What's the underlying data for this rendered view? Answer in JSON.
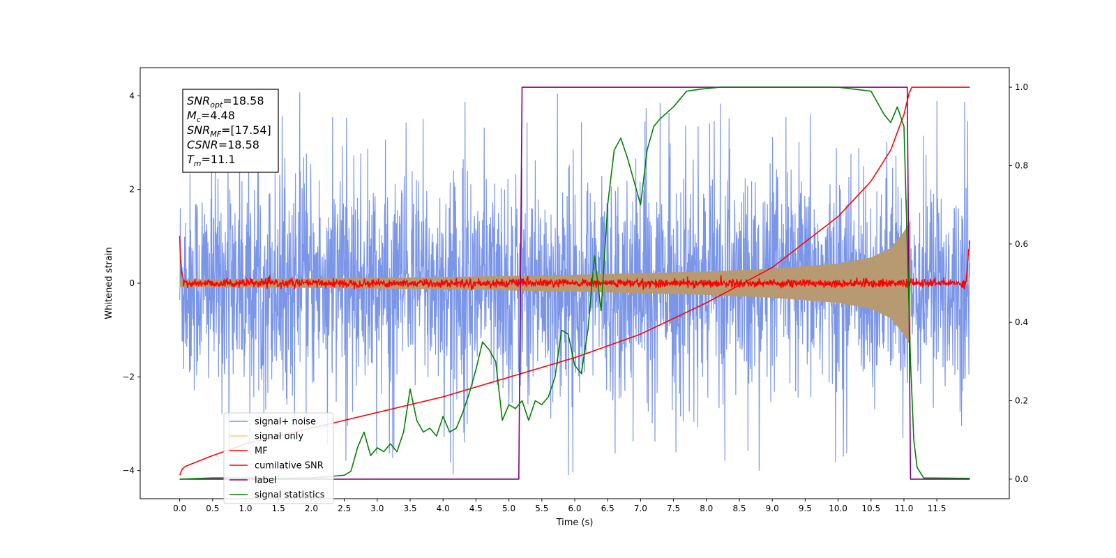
{
  "chart_data": {
    "type": "line",
    "title": "",
    "xlabel": "Time (s)",
    "ylabel": "Whitened strain",
    "xlim": [
      -0.6,
      12.6
    ],
    "ylim": [
      -4.6,
      4.6
    ],
    "y2lim": [
      -0.05,
      1.05
    ],
    "xticks": [
      "0.0",
      "0.5",
      "1.0",
      "1.5",
      "2.0",
      "2.5",
      "3.0",
      "3.5",
      "4.0",
      "4.5",
      "5.0",
      "5.5",
      "6.0",
      "6.5",
      "7.0",
      "7.5",
      "8.0",
      "8.5",
      "9.0",
      "9.5",
      "10.0",
      "10.5",
      "11.0",
      "11.5"
    ],
    "yticks": [
      "−4",
      "−2",
      "0",
      "2",
      "4"
    ],
    "y2ticks": [
      "0.0",
      "0.2",
      "0.4",
      "0.6",
      "0.8",
      "1.0"
    ],
    "grid": false,
    "legend_position": "lower-left",
    "annotations": {
      "snr_opt": {
        "label": "SNR",
        "sub": "opt",
        "value": "=18.58"
      },
      "mc": {
        "label": "M",
        "sub": "c",
        "value": "=4.48"
      },
      "snr_mf": {
        "label": "SNR",
        "sub": "MF",
        "value": "=[17.54]"
      },
      "csnr": {
        "label": "CSNR",
        "value": "=18.58"
      },
      "tm": {
        "label": "T",
        "sub": "m",
        "value": "=11.1"
      }
    },
    "series": [
      {
        "name": "signal+ noise",
        "color": "#7b96e8",
        "axis": "left",
        "description_level": "noise band roughly ±2.5 with peaks to ±4.1"
      },
      {
        "name": "signal only",
        "color": "#ffc870",
        "axis": "left",
        "envelope": {
          "x": [
            0,
            2,
            4,
            6,
            8,
            9,
            10,
            10.5,
            10.8,
            11.0,
            11.1
          ],
          "amp": [
            0.08,
            0.1,
            0.13,
            0.18,
            0.25,
            0.31,
            0.42,
            0.55,
            0.75,
            1.1,
            1.35
          ]
        }
      },
      {
        "name": "MF",
        "color": "#ff0000",
        "axis": "left",
        "level": 0.0
      },
      {
        "name": "cumilative SNR",
        "color": "#ff0000",
        "axis": "right",
        "x": [
          0,
          0.05,
          0.5,
          1,
          2,
          3,
          4,
          5,
          6,
          7,
          8,
          9,
          10,
          10.5,
          10.8,
          11.0,
          11.1,
          11.15,
          12.0
        ],
        "y": [
          0.01,
          0.03,
          0.06,
          0.09,
          0.13,
          0.17,
          0.21,
          0.26,
          0.31,
          0.37,
          0.45,
          0.54,
          0.67,
          0.76,
          0.84,
          0.93,
          1.0,
          1.0,
          1.0
        ]
      },
      {
        "name": "label",
        "color": "#800080",
        "axis": "right",
        "x": [
          0,
          5.15,
          5.2,
          11.05,
          11.1,
          12.0
        ],
        "y": [
          0,
          0,
          1,
          1,
          0,
          0
        ]
      },
      {
        "name": "signal statistics",
        "color": "#008000",
        "axis": "right",
        "x": [
          0,
          0.5,
          1,
          1.5,
          2,
          2.3,
          2.5,
          2.6,
          2.7,
          2.8,
          2.9,
          3.0,
          3.1,
          3.2,
          3.3,
          3.4,
          3.5,
          3.6,
          3.7,
          3.8,
          3.9,
          4.0,
          4.1,
          4.2,
          4.3,
          4.4,
          4.5,
          4.6,
          4.7,
          4.8,
          4.9,
          5.0,
          5.1,
          5.2,
          5.3,
          5.4,
          5.5,
          5.6,
          5.7,
          5.8,
          5.9,
          6.0,
          6.1,
          6.2,
          6.3,
          6.4,
          6.5,
          6.6,
          6.7,
          6.8,
          6.9,
          7.0,
          7.1,
          7.2,
          7.3,
          7.5,
          7.7,
          7.9,
          8.2,
          8.6,
          9.0,
          9.5,
          10.0,
          10.5,
          10.7,
          10.8,
          10.9,
          11.0,
          11.05,
          11.1,
          11.15,
          11.2,
          11.3,
          12.0
        ],
        "y": [
          0.0,
          0.003,
          0.003,
          0.002,
          0.003,
          0.007,
          0.01,
          0.02,
          0.08,
          0.12,
          0.06,
          0.08,
          0.07,
          0.09,
          0.07,
          0.12,
          0.23,
          0.15,
          0.12,
          0.13,
          0.11,
          0.16,
          0.12,
          0.13,
          0.17,
          0.22,
          0.28,
          0.35,
          0.33,
          0.3,
          0.15,
          0.19,
          0.18,
          0.2,
          0.15,
          0.2,
          0.19,
          0.21,
          0.26,
          0.38,
          0.37,
          0.29,
          0.27,
          0.38,
          0.57,
          0.43,
          0.7,
          0.84,
          0.87,
          0.82,
          0.76,
          0.7,
          0.84,
          0.9,
          0.92,
          0.95,
          0.99,
          0.995,
          1.0,
          1.0,
          1.0,
          1.0,
          1.0,
          0.99,
          0.93,
          0.91,
          0.95,
          0.9,
          0.6,
          0.3,
          0.1,
          0.03,
          0.003,
          0.002
        ]
      }
    ]
  }
}
